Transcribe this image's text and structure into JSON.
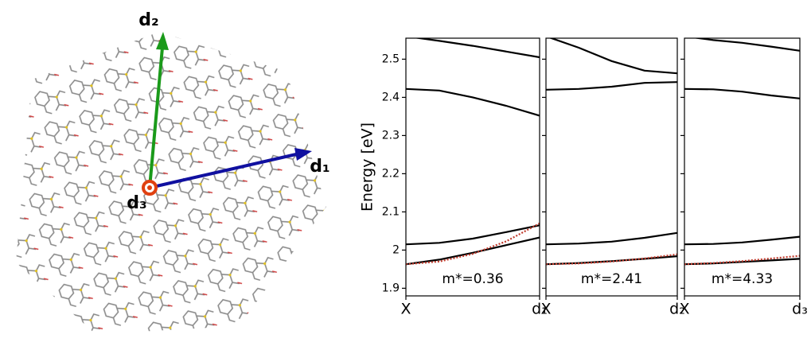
{
  "structure": {
    "vectors": [
      "d₁",
      "d₂",
      "d₃"
    ]
  },
  "chart_data": [
    {
      "type": "line",
      "ylabel": "Energy [eV]",
      "annotation": "m*=0.36",
      "x": [
        0,
        0.25,
        0.5,
        0.75,
        1
      ],
      "xlim": [
        0,
        1
      ],
      "xticks": [
        {
          "value": 0,
          "label": "X"
        },
        {
          "value": 1,
          "label": "d₁"
        }
      ],
      "ylim": [
        1.88,
        2.555
      ],
      "yticks": [
        1.9,
        2.0,
        2.1,
        2.2,
        2.3,
        2.4,
        2.5
      ],
      "show_ytick_labels": true,
      "series": [
        {
          "color": "#000000",
          "values": [
            1.963,
            1.975,
            1.993,
            2.013,
            2.033
          ]
        },
        {
          "color": "#000000",
          "values": [
            2.015,
            2.019,
            2.03,
            2.047,
            2.065
          ]
        },
        {
          "color": "#000000",
          "values": [
            2.422,
            2.418,
            2.4,
            2.378,
            2.352
          ]
        },
        {
          "color": "#000000",
          "values": [
            2.56,
            2.548,
            2.535,
            2.52,
            2.505
          ]
        },
        {
          "color": "#c0392b",
          "dash": "dotted",
          "values": [
            1.963,
            1.97,
            1.99,
            2.023,
            2.07
          ]
        }
      ]
    },
    {
      "type": "line",
      "annotation": "m*=2.41",
      "x": [
        0,
        0.25,
        0.5,
        0.75,
        1
      ],
      "xlim": [
        0,
        1
      ],
      "xticks": [
        {
          "value": 0,
          "label": "X"
        },
        {
          "value": 1,
          "label": "d₂"
        }
      ],
      "ylim": [
        1.88,
        2.555
      ],
      "yticks": [
        1.9,
        2.0,
        2.1,
        2.2,
        2.3,
        2.4,
        2.5
      ],
      "show_ytick_labels": false,
      "series": [
        {
          "color": "#000000",
          "values": [
            1.963,
            1.966,
            1.971,
            1.977,
            1.984
          ]
        },
        {
          "color": "#000000",
          "values": [
            2.015,
            2.017,
            2.022,
            2.032,
            2.045
          ]
        },
        {
          "color": "#000000",
          "values": [
            2.42,
            2.422,
            2.428,
            2.438,
            2.44
          ]
        },
        {
          "color": "#000000",
          "values": [
            2.56,
            2.53,
            2.495,
            2.47,
            2.463
          ]
        },
        {
          "color": "#c0392b",
          "dash": "dotted",
          "values": [
            1.963,
            1.965,
            1.97,
            1.978,
            1.989
          ]
        }
      ]
    },
    {
      "type": "line",
      "annotation": "m*=4.33",
      "x": [
        0,
        0.25,
        0.5,
        0.75,
        1
      ],
      "xlim": [
        0,
        1
      ],
      "xticks": [
        {
          "value": 0,
          "label": "X"
        },
        {
          "value": 1,
          "label": "d₃"
        }
      ],
      "ylim": [
        1.88,
        2.555
      ],
      "yticks": [
        1.9,
        2.0,
        2.1,
        2.2,
        2.3,
        2.4,
        2.5
      ],
      "show_ytick_labels": false,
      "series": [
        {
          "color": "#000000",
          "values": [
            1.963,
            1.965,
            1.969,
            1.973,
            1.977
          ]
        },
        {
          "color": "#000000",
          "values": [
            2.015,
            2.016,
            2.02,
            2.027,
            2.035
          ]
        },
        {
          "color": "#000000",
          "values": [
            2.422,
            2.421,
            2.415,
            2.405,
            2.397
          ]
        },
        {
          "color": "#000000",
          "values": [
            2.56,
            2.55,
            2.543,
            2.533,
            2.522
          ]
        },
        {
          "color": "#c0392b",
          "dash": "dotted",
          "values": [
            1.963,
            1.966,
            1.971,
            1.978,
            1.985
          ]
        }
      ]
    }
  ]
}
